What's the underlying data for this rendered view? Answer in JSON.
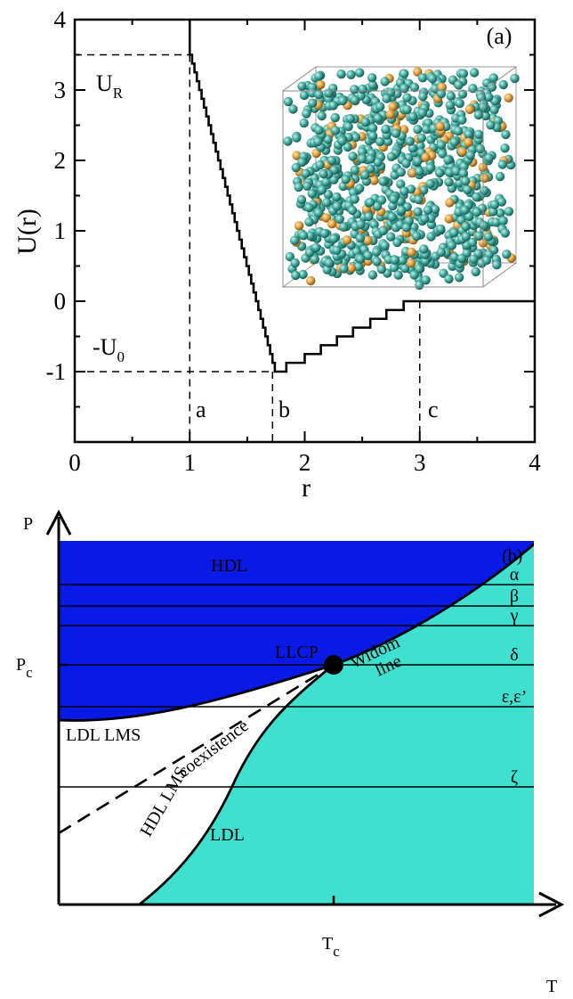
{
  "chart_data": [
    {
      "panel": "(a)",
      "type": "line",
      "xlabel": "r",
      "ylabel": "U(r)",
      "xlim": [
        0,
        4
      ],
      "ylim": [
        -2,
        4
      ],
      "x_ticks": [
        "0",
        "1",
        "2",
        "3",
        "4"
      ],
      "y_ticks": [
        "-1",
        "0",
        "1",
        "2",
        "3",
        "4"
      ],
      "series": [
        {
          "points": [
            [
              1.0,
              4.0
            ],
            [
              1.0,
              3.5
            ],
            [
              1.74,
              -1.0
            ],
            [
              1.84,
              -1.0
            ],
            [
              1.84,
              -0.875
            ],
            [
              2.0,
              -0.875
            ],
            [
              2.0,
              -0.75
            ],
            [
              2.14,
              -0.75
            ],
            [
              2.14,
              -0.625
            ],
            [
              2.28,
              -0.625
            ],
            [
              2.28,
              -0.5
            ],
            [
              2.42,
              -0.5
            ],
            [
              2.42,
              -0.375
            ],
            [
              2.57,
              -0.375
            ],
            [
              2.57,
              -0.25
            ],
            [
              2.71,
              -0.25
            ],
            [
              2.71,
              -0.125
            ],
            [
              2.86,
              -0.125
            ],
            [
              2.86,
              0.0
            ],
            [
              4.0,
              0.0
            ]
          ]
        }
      ],
      "reference_lines": {
        "U_R": 3.5,
        "U_0": -1.0,
        "a": 1.0,
        "b": 1.72,
        "c": 3.0
      },
      "annotations": {
        "U_R_main": "U",
        "U_R_sub": "R",
        "U_0_main": "-U",
        "U_0_sub": "0",
        "a": "a",
        "b": "b",
        "c": "c"
      },
      "inset": "snapshot of particle configuration in simulation box",
      "colors": {
        "particle_major": "#3fa89c",
        "particle_minor": "#e0a040"
      }
    },
    {
      "panel": "(b)",
      "type": "area",
      "xlabel": "T",
      "ylabel": "P",
      "x_ticks": [
        {
          "main": "T",
          "sub": "c"
        }
      ],
      "y_ticks": [
        {
          "main": "P",
          "sub": "c"
        }
      ],
      "regions": [
        "HDL",
        "LDL"
      ],
      "region_labels": {
        "hdl": "HDL",
        "ldl": "LDL",
        "ldl_lms": "LDL LMS",
        "hdl_lms": "HDL LMS"
      },
      "curve_labels": {
        "coexistence": "coexistence",
        "widom_1": "Widom",
        "widom_2": "line"
      },
      "critical_point": "LLCP",
      "isobars": [
        "α",
        "β",
        "γ",
        "δ",
        "ε,ε’",
        "ζ"
      ],
      "colors": {
        "hdl": "#0a1ae6",
        "ldl": "#40e0d0"
      }
    }
  ]
}
